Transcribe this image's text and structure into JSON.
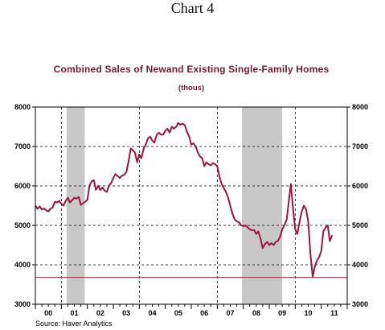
{
  "page": {
    "title": "Chart 4"
  },
  "chart_data": {
    "type": "line",
    "title": "Combined Sales of Newand Existing Single-Family Homes",
    "subtitle": "(thous)",
    "source": "Source: Haver Analytics",
    "ylim": [
      3000,
      8000
    ],
    "yticks": [
      3000,
      4000,
      5000,
      6000,
      7000,
      8000
    ],
    "y_tick_labels": [
      "3000",
      "4000",
      "5000",
      "6000",
      "7000",
      "8000"
    ],
    "xlim": [
      2000.0,
      2012.0
    ],
    "x_tick_labels": [
      "00",
      "01",
      "02",
      "03",
      "04",
      "05",
      "06",
      "07",
      "08",
      "09",
      "10",
      "11"
    ],
    "grid": true,
    "legend": "none",
    "colors": {
      "series": "#a0153e",
      "recession": "#c8c8c8",
      "baseline": "#c0142c",
      "grid": "#000000"
    },
    "recessions": [
      [
        2001.2,
        2001.9
      ],
      [
        2007.95,
        2009.5
      ]
    ],
    "reference_line": 3680,
    "series": [
      {
        "x": [
          2000.0,
          2000.08,
          2000.17,
          2000.25,
          2000.33,
          2000.42,
          2000.5,
          2000.58,
          2000.67,
          2000.75,
          2000.83,
          2000.92,
          2001.0,
          2001.08,
          2001.17,
          2001.25,
          2001.33,
          2001.42,
          2001.5,
          2001.58,
          2001.67,
          2001.75,
          2001.83,
          2001.92,
          2002.0,
          2002.08,
          2002.17,
          2002.25,
          2002.33,
          2002.42,
          2002.5,
          2002.58,
          2002.67,
          2002.75,
          2002.83,
          2002.92,
          2003.0,
          2003.08,
          2003.17,
          2003.25,
          2003.33,
          2003.42,
          2003.5,
          2003.58,
          2003.67,
          2003.75,
          2003.83,
          2003.92,
          2004.0,
          2004.08,
          2004.17,
          2004.25,
          2004.33,
          2004.42,
          2004.5,
          2004.58,
          2004.67,
          2004.75,
          2004.83,
          2004.92,
          2005.0,
          2005.08,
          2005.17,
          2005.25,
          2005.33,
          2005.42,
          2005.5,
          2005.58,
          2005.67,
          2005.75,
          2005.83,
          2005.92,
          2006.0,
          2006.08,
          2006.17,
          2006.25,
          2006.33,
          2006.42,
          2006.5,
          2006.58,
          2006.67,
          2006.75,
          2006.83,
          2006.92,
          2007.0,
          2007.08,
          2007.17,
          2007.25,
          2007.33,
          2007.42,
          2007.5,
          2007.58,
          2007.67,
          2007.75,
          2007.83,
          2007.92,
          2008.0,
          2008.08,
          2008.17,
          2008.25,
          2008.33,
          2008.42,
          2008.5,
          2008.58,
          2008.67,
          2008.75,
          2008.83,
          2008.92,
          2009.0,
          2009.08,
          2009.17,
          2009.25,
          2009.33,
          2009.42,
          2009.5,
          2009.58,
          2009.67,
          2009.75,
          2009.83,
          2009.92,
          2010.0,
          2010.08,
          2010.17,
          2010.25,
          2010.33,
          2010.42,
          2010.5,
          2010.58,
          2010.67,
          2010.75,
          2010.83,
          2010.92,
          2011.0,
          2011.08,
          2011.17,
          2011.25,
          2011.33,
          2011.42
        ],
        "values": [
          5500,
          5420,
          5480,
          5400,
          5430,
          5380,
          5350,
          5420,
          5460,
          5600,
          5580,
          5620,
          5550,
          5500,
          5620,
          5700,
          5580,
          5640,
          5700,
          5680,
          5720,
          5520,
          5560,
          5600,
          5650,
          6000,
          6120,
          6150,
          5900,
          6000,
          5900,
          5960,
          5880,
          5850,
          6000,
          6080,
          6200,
          6300,
          6250,
          6200,
          6260,
          6280,
          6350,
          6600,
          6950,
          6900,
          6850,
          6600,
          6800,
          6700,
          6950,
          7050,
          7200,
          7250,
          7150,
          7100,
          7300,
          7350,
          7300,
          7300,
          7400,
          7450,
          7350,
          7500,
          7450,
          7500,
          7600,
          7550,
          7580,
          7540,
          7380,
          7250,
          7050,
          7080,
          7000,
          6850,
          6750,
          6700,
          6500,
          6600,
          6550,
          6520,
          6580,
          6550,
          6500,
          6250,
          6050,
          5950,
          5850,
          5700,
          5500,
          5300,
          5150,
          5100,
          5080,
          5000,
          4980,
          5000,
          4950,
          4900,
          4880,
          4880,
          4780,
          4850,
          4650,
          4420,
          4520,
          4580,
          4500,
          4550,
          4500,
          4580,
          4600,
          4720,
          4900,
          5000,
          5150,
          5600,
          6050,
          5400,
          4900,
          4780,
          5100,
          5350,
          5500,
          5400,
          5100,
          4300,
          3700,
          3950,
          4100,
          4200,
          4350,
          4850,
          4950,
          5000,
          4600,
          4750
        ]
      }
    ]
  }
}
